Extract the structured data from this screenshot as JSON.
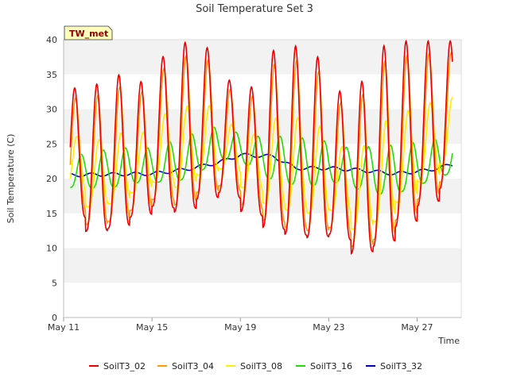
{
  "chart_data": {
    "type": "line",
    "title": "Soil Temperature Set 3",
    "xlabel": "Time",
    "ylabel": "Soil Temperature (C)",
    "site_label": "TW_met",
    "x_range_days": [
      0,
      18
    ],
    "ylim": [
      0,
      40
    ],
    "y_ticks": [
      0,
      5,
      10,
      15,
      20,
      25,
      30,
      35,
      40
    ],
    "x_ticks": [
      {
        "day": 0,
        "label": "May 11"
      },
      {
        "day": 4,
        "label": "May 15"
      },
      {
        "day": 8,
        "label": "May 19"
      },
      {
        "day": 12,
        "label": "May 23"
      },
      {
        "day": 16,
        "label": "May 27"
      }
    ],
    "grid": "horizontal bands",
    "legend_placement": "bottom",
    "data_span_days": [
      0.3,
      17.6
    ],
    "daily_max": [
      33.0,
      33.3,
      35.2,
      33.4,
      37.2,
      39.6,
      39.6,
      34.5,
      32.3,
      38.3,
      39.2,
      38.4,
      32.5,
      33.1,
      39.0,
      39.8,
      39.8,
      39.8
    ],
    "daily_min": [
      15.2,
      12.4,
      12.8,
      14.4,
      16.0,
      15.2,
      17.0,
      18.0,
      15.3,
      13.0,
      12.0,
      11.5,
      12.0,
      9.2,
      10.2,
      13.0,
      16.0,
      18.5
    ],
    "series": [
      {
        "name": "SoilT3_02",
        "color": "#ee0000",
        "kind": "surface",
        "amp": 1.0,
        "phase": 0.0,
        "min_offset": 0.0
      },
      {
        "name": "SoilT3_04",
        "color": "#ff9900",
        "kind": "surface",
        "amp": 0.92,
        "phase": 0.04,
        "min_offset": 1.0
      },
      {
        "name": "SoilT3_08",
        "color": "#ffee00",
        "kind": "surface",
        "amp": 0.62,
        "phase": 0.1,
        "min_offset": 3.5
      },
      {
        "name": "SoilT3_16",
        "color": "#22dd00",
        "kind": "deep",
        "amp": 0.18,
        "phase": 0.3,
        "min_offset": 0.0
      },
      {
        "name": "SoilT3_32",
        "color": "#0000cc",
        "kind": "deepest",
        "amp": 0.0,
        "phase": 0.0,
        "min_offset": 0.0
      }
    ],
    "deep_mean": [
      {
        "day": 0.3,
        "v16": 21.0,
        "v32": 20.5
      },
      {
        "day": 2.0,
        "v16": 21.5,
        "v32": 20.6
      },
      {
        "day": 4.0,
        "v16": 22.0,
        "v32": 20.7
      },
      {
        "day": 5.5,
        "v16": 23.0,
        "v32": 21.3
      },
      {
        "day": 7.0,
        "v16": 25.0,
        "v32": 22.3
      },
      {
        "day": 8.0,
        "v16": 24.5,
        "v32": 23.4
      },
      {
        "day": 9.5,
        "v16": 23.0,
        "v32": 23.2
      },
      {
        "day": 10.5,
        "v16": 22.5,
        "v32": 21.5
      },
      {
        "day": 12.0,
        "v16": 22.2,
        "v32": 21.5
      },
      {
        "day": 13.5,
        "v16": 21.5,
        "v32": 21.2
      },
      {
        "day": 15.0,
        "v16": 21.2,
        "v32": 20.7
      },
      {
        "day": 16.5,
        "v16": 22.5,
        "v32": 21.2
      },
      {
        "day": 17.6,
        "v16": 23.5,
        "v32": 22.0
      }
    ]
  }
}
